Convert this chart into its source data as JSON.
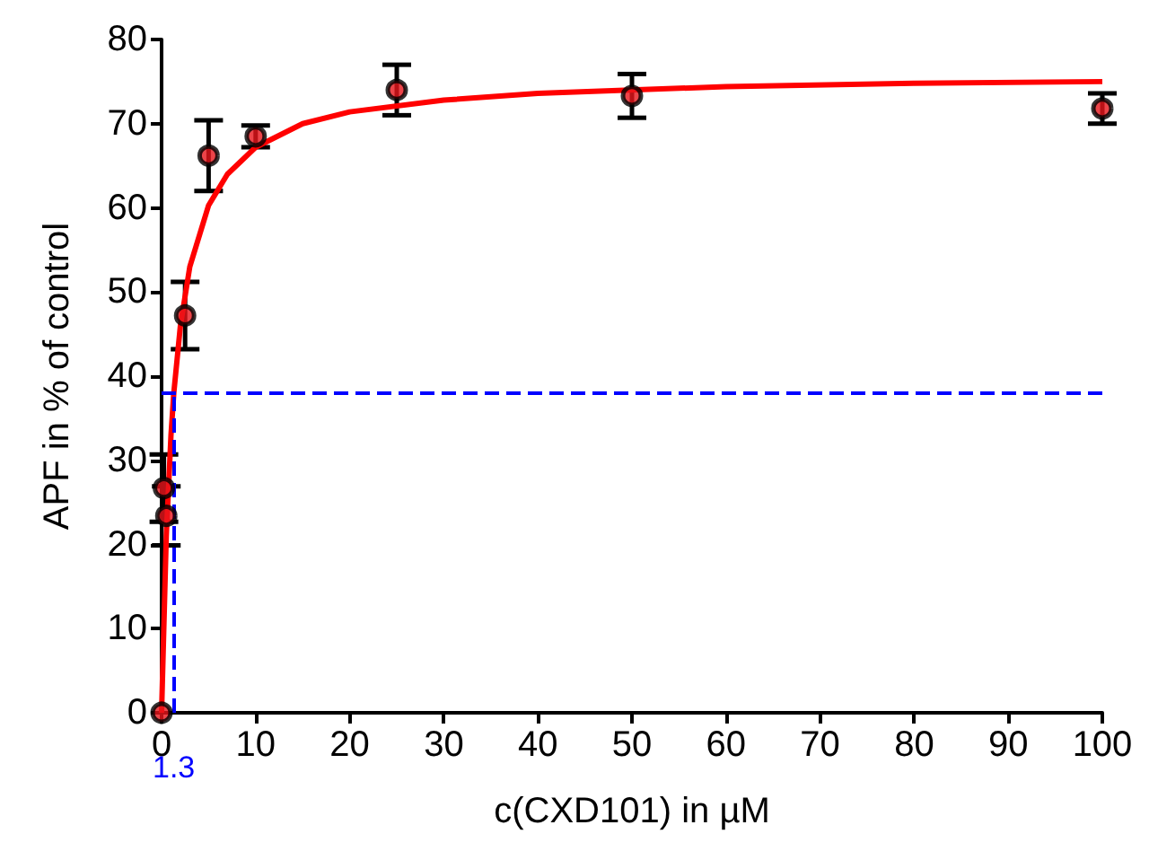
{
  "chart_data": {
    "type": "scatter",
    "xlabel": "c(CXD101) in µM",
    "ylabel": "APF in % of control",
    "series": [
      {
        "color": "#e8151b",
        "marker": "circle",
        "x": [
          0,
          0.25,
          0.5,
          2.5,
          5,
          10,
          25,
          50,
          100
        ],
        "values": [
          0,
          26.7,
          23.4,
          47.2,
          66.2,
          68.5,
          74,
          73.3,
          71.8
        ],
        "errors": [
          null,
          4,
          3.5,
          4,
          4.2,
          1.3,
          3,
          2.6,
          1.8
        ]
      },
      {
        "type": "line",
        "color": "#ff0000",
        "marker": "none",
        "x": [
          0,
          0.5,
          1,
          1.3,
          2,
          3,
          5,
          7,
          10,
          15,
          20,
          30,
          40,
          60,
          80,
          100
        ],
        "values": [
          0,
          21,
          33,
          38,
          46,
          53,
          60.3,
          64,
          67.2,
          70,
          71.4,
          72.8,
          73.6,
          74.4,
          74.8,
          75
        ]
      }
    ],
    "ref_lines": [
      {
        "axis": "y",
        "value": 38,
        "label": null,
        "color": "#0000ff",
        "line_style": "dashed"
      },
      {
        "axis": "x",
        "value": 1.3,
        "label": "1.3",
        "color": "#0000ff",
        "line_style": "dashed"
      }
    ],
    "xlim": [
      0,
      100
    ],
    "xticks": [
      0,
      10,
      20,
      30,
      40,
      50,
      60,
      70,
      80,
      90,
      100
    ],
    "ylim": [
      0,
      80
    ],
    "yticks": [
      0,
      10,
      20,
      30,
      40,
      50,
      60,
      70,
      80
    ],
    "grid": false
  }
}
